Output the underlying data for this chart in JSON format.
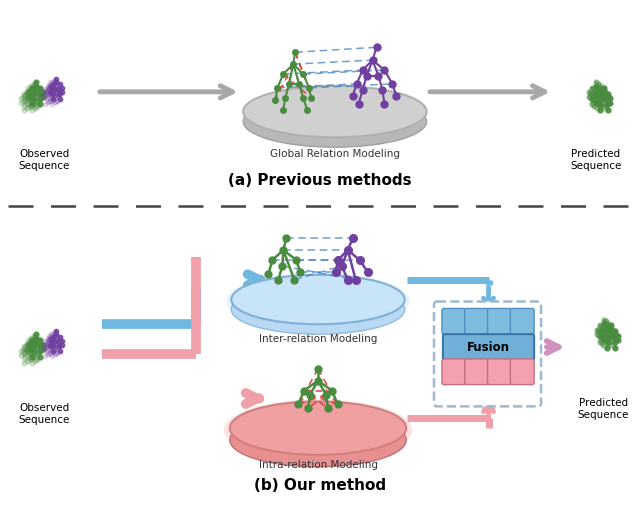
{
  "title_a": "(a) Previous methods",
  "title_b": "(b) Our method",
  "label_observed": "Observed\nSequence",
  "label_predicted": "Predicted\nSequence",
  "label_global": "Global Relation Modeling",
  "label_inter": "Inter-relation Modeling",
  "label_intra": "Intra-relation Modeling",
  "label_fusion": "Fusion",
  "color_green": "#4a8c3f",
  "color_purple": "#7040a0",
  "color_purple_light": "#c090e0",
  "color_red_dashed": "#e03030",
  "color_blue_dashed": "#4080c0",
  "color_arrow_gray": "#a8a8a8",
  "color_arrow_blue": "#70b8e0",
  "color_arrow_pink": "#f0a0a8",
  "color_disk_gray_outer": "#c8c8c8",
  "color_disk_gray_inner": "#d8d8d8",
  "color_disk_blue_outer": "#aad0f0",
  "color_disk_blue_inner": "#c0dff8",
  "color_disk_blue_top": "#d8ecfc",
  "color_disk_pink_outer": "#f0a8a8",
  "color_disk_pink_inner": "#f8c0c0",
  "color_disk_pink_top": "#fcd8d8",
  "color_fusion_blue_cell": "#80bce0",
  "color_fusion_pink_cell": "#f4a0b0",
  "color_fusion_blue_bar": "#70b0d8",
  "color_fusion_border": "#a0b8d0",
  "bg_color": "#ffffff"
}
